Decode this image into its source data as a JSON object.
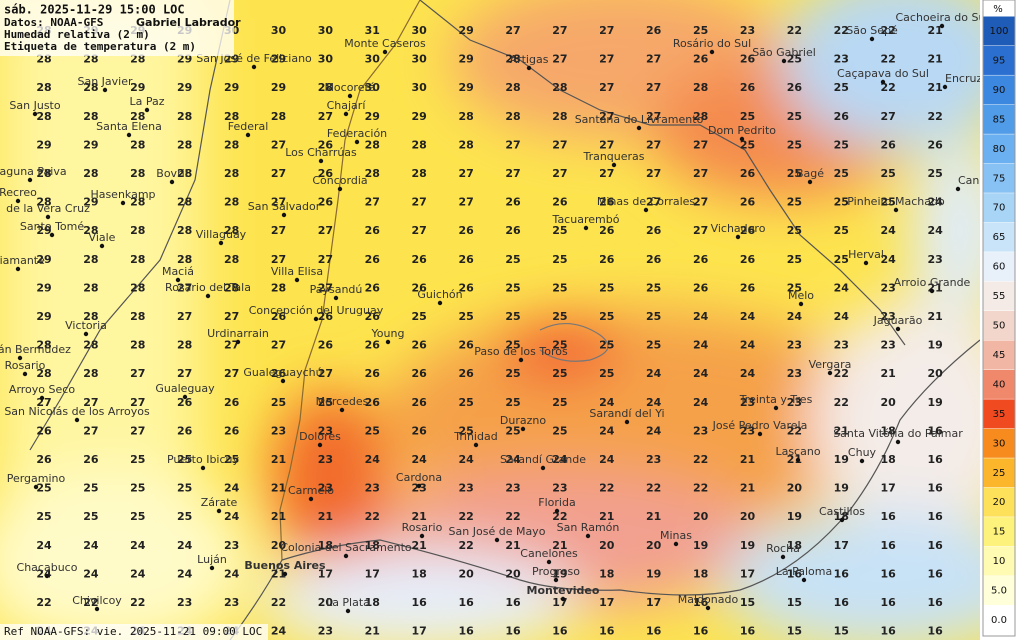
{
  "header": {
    "title": "sáb. 2025-11-29 15:00 LOC",
    "source": "Datos: NOAA-GFS",
    "author": "Gabriel Labrador",
    "layer": "Humedad relativa (2 m)",
    "labels": "Etiqueta de temperatura (2 m)"
  },
  "footer": "Ref NOAA-GFS: vie. 2025-11-21 09:00 LOC",
  "legend": {
    "unit": "%",
    "levels": [
      {
        "value": 100,
        "color": "#1f5cb8"
      },
      {
        "value": 95,
        "color": "#2b70d0"
      },
      {
        "value": 90,
        "color": "#3c87e0"
      },
      {
        "value": 85,
        "color": "#509ce8"
      },
      {
        "value": 80,
        "color": "#6bb0f0"
      },
      {
        "value": 75,
        "color": "#88c2f4"
      },
      {
        "value": 70,
        "color": "#a8d4f6"
      },
      {
        "value": 65,
        "color": "#c9e4f8"
      },
      {
        "value": 60,
        "color": "#e8f0fa"
      },
      {
        "value": 55,
        "color": "#f4ebe6"
      },
      {
        "value": 50,
        "color": "#f2d6cc"
      },
      {
        "value": 45,
        "color": "#f2b6a4"
      },
      {
        "value": 40,
        "color": "#f0886c"
      },
      {
        "value": 35,
        "color": "#ef4a20"
      },
      {
        "value": 30,
        "color": "#f78b1e"
      },
      {
        "value": 25,
        "color": "#fbb62b"
      },
      {
        "value": 20,
        "color": "#fde15a"
      },
      {
        "value": 15,
        "color": "#fdf27c"
      },
      {
        "value": 10,
        "color": "#fffbb2"
      },
      {
        "value": 5,
        "label": "5.0",
        "color": "#ffffda"
      },
      {
        "value": 0,
        "label": "0.0",
        "color": "#ffffff"
      }
    ]
  },
  "temperature_grid": [
    [
      28,
      29,
      29,
      29,
      30,
      30,
      30,
      31,
      30,
      29,
      27,
      27,
      27,
      26,
      25,
      23,
      22,
      22,
      22,
      21
    ],
    [
      28,
      28,
      28,
      29,
      29,
      29,
      30,
      30,
      30,
      29,
      28,
      27,
      27,
      27,
      26,
      26,
      25,
      23,
      22,
      21
    ],
    [
      28,
      28,
      29,
      29,
      29,
      29,
      28,
      30,
      30,
      29,
      28,
      28,
      27,
      27,
      28,
      26,
      26,
      25,
      22,
      21
    ],
    [
      28,
      28,
      28,
      28,
      28,
      28,
      27,
      29,
      29,
      28,
      28,
      28,
      27,
      27,
      28,
      25,
      25,
      26,
      27,
      22
    ],
    [
      29,
      29,
      28,
      28,
      28,
      27,
      26,
      28,
      28,
      28,
      27,
      27,
      27,
      27,
      27,
      25,
      25,
      25,
      26,
      26
    ],
    [
      28,
      28,
      28,
      28,
      28,
      27,
      26,
      28,
      28,
      27,
      27,
      27,
      27,
      27,
      27,
      26,
      25,
      25,
      25,
      25
    ],
    [
      28,
      29,
      28,
      28,
      28,
      27,
      26,
      27,
      27,
      27,
      26,
      26,
      26,
      27,
      27,
      26,
      25,
      25,
      25,
      24
    ],
    [
      29,
      28,
      28,
      28,
      28,
      27,
      27,
      26,
      27,
      26,
      26,
      25,
      26,
      26,
      27,
      26,
      25,
      25,
      24,
      24
    ],
    [
      29,
      28,
      28,
      28,
      28,
      27,
      27,
      26,
      26,
      26,
      25,
      25,
      26,
      26,
      26,
      26,
      25,
      25,
      24,
      23
    ],
    [
      29,
      28,
      28,
      27,
      28,
      28,
      27,
      26,
      26,
      26,
      25,
      25,
      25,
      25,
      26,
      26,
      25,
      24,
      23,
      21
    ],
    [
      29,
      28,
      28,
      27,
      27,
      26,
      26,
      26,
      25,
      25,
      25,
      25,
      25,
      25,
      24,
      24,
      24,
      24,
      23,
      21
    ],
    [
      28,
      28,
      28,
      28,
      27,
      27,
      26,
      26,
      26,
      26,
      25,
      25,
      25,
      25,
      24,
      24,
      23,
      23,
      23,
      19
    ],
    [
      28,
      28,
      27,
      27,
      27,
      26,
      27,
      26,
      26,
      26,
      25,
      25,
      25,
      24,
      24,
      24,
      23,
      22,
      21,
      20
    ],
    [
      27,
      27,
      27,
      26,
      26,
      25,
      25,
      26,
      26,
      25,
      25,
      25,
      24,
      24,
      24,
      23,
      23,
      22,
      20,
      19
    ],
    [
      26,
      27,
      27,
      26,
      26,
      23,
      23,
      25,
      26,
      25,
      25,
      25,
      24,
      24,
      23,
      23,
      22,
      21,
      18,
      16
    ],
    [
      26,
      26,
      25,
      25,
      25,
      21,
      23,
      24,
      24,
      24,
      24,
      24,
      24,
      23,
      22,
      21,
      21,
      19,
      18,
      16
    ],
    [
      25,
      25,
      25,
      25,
      24,
      21,
      23,
      23,
      23,
      23,
      23,
      23,
      22,
      22,
      22,
      21,
      20,
      19,
      17,
      16
    ],
    [
      25,
      25,
      25,
      25,
      24,
      21,
      21,
      22,
      21,
      22,
      22,
      22,
      21,
      21,
      20,
      20,
      19,
      18,
      16,
      16
    ],
    [
      24,
      24,
      24,
      24,
      23,
      20,
      18,
      18,
      21,
      22,
      21,
      21,
      20,
      20,
      19,
      19,
      18,
      17,
      16,
      16
    ],
    [
      24,
      24,
      24,
      24,
      24,
      21,
      17,
      17,
      18,
      20,
      20,
      19,
      18,
      19,
      18,
      17,
      16,
      16,
      16,
      16
    ],
    [
      22,
      22,
      22,
      23,
      23,
      22,
      20,
      18,
      16,
      16,
      16,
      17,
      17,
      17,
      16,
      15,
      15,
      16,
      16,
      16
    ],
    [
      24,
      24,
      24,
      24,
      24,
      24,
      23,
      21,
      17,
      16,
      16,
      16,
      16,
      16,
      16,
      16,
      15,
      15,
      16,
      16
    ]
  ],
  "cities": [
    "Monte Caseros",
    "Rosário do Sul",
    "São Gabriel",
    "São Sepé",
    "Cachoeira do Sul",
    "Caçapava do Sul",
    "Encruzilhada do Sul",
    "San Javier",
    "La Paz",
    "San Justo",
    "Santa Elena",
    "Federal",
    "San José de Feliciano",
    "Mocoretá",
    "Chajarí",
    "Federación",
    "Los Charrúas",
    "Concordia",
    "Artigas",
    "Santana do Livramento",
    "Dom Pedrito",
    "Tranqueras",
    "Bagé",
    "Pinheiro Machado",
    "Canguçu",
    "Laguna Paiva",
    "Bovril",
    "Recreo",
    "Hasenkamp",
    "de la Vera Cruz",
    "San Salvador",
    "Minas de Corrales",
    "Tacuarembó",
    "Vichadero",
    "Santo Tomé",
    "Viale",
    "Villaguay",
    "Herval",
    "Diamante",
    "Maciá",
    "Villa Elisa",
    "Arroio Grande",
    "Rosario del Tala",
    "Paysandú",
    "Guichón",
    "Melo",
    "Victoria",
    "Concepción del Uruguay",
    "Jaguarão",
    "Urdinarrain",
    "Young",
    "Paso de los Toros",
    "Capitán Bermúdez",
    "Rosario",
    "Gualeguaychú",
    "Vergara",
    "Arroyo Seco",
    "Gualeguay",
    "Mercedes",
    "Treinta y Tres",
    "San Nicolás de los Arroyos",
    "Sarandí del Yi",
    "Durazno",
    "José Pedro Varela",
    "Dolores",
    "Trinidad",
    "Santa Vitória do Palmar",
    "Lascano",
    "Chuy",
    "Puerto Ibicuy",
    "Sarandí Grande",
    "Pergamino",
    "Cardona",
    "Carmelo",
    "Zárate",
    "Florida",
    "Castillos",
    "Rosario",
    "San José de Mayo",
    "San Ramón",
    "Minas",
    "Colonia del Sacramento",
    "Canelones",
    "Rocha",
    "Luján",
    "Chacabuco",
    "Buenos Aires",
    "Progreso",
    "La Paloma",
    "Montevideo",
    "Maldonado",
    "Chivilcoy",
    "La Plata"
  ]
}
